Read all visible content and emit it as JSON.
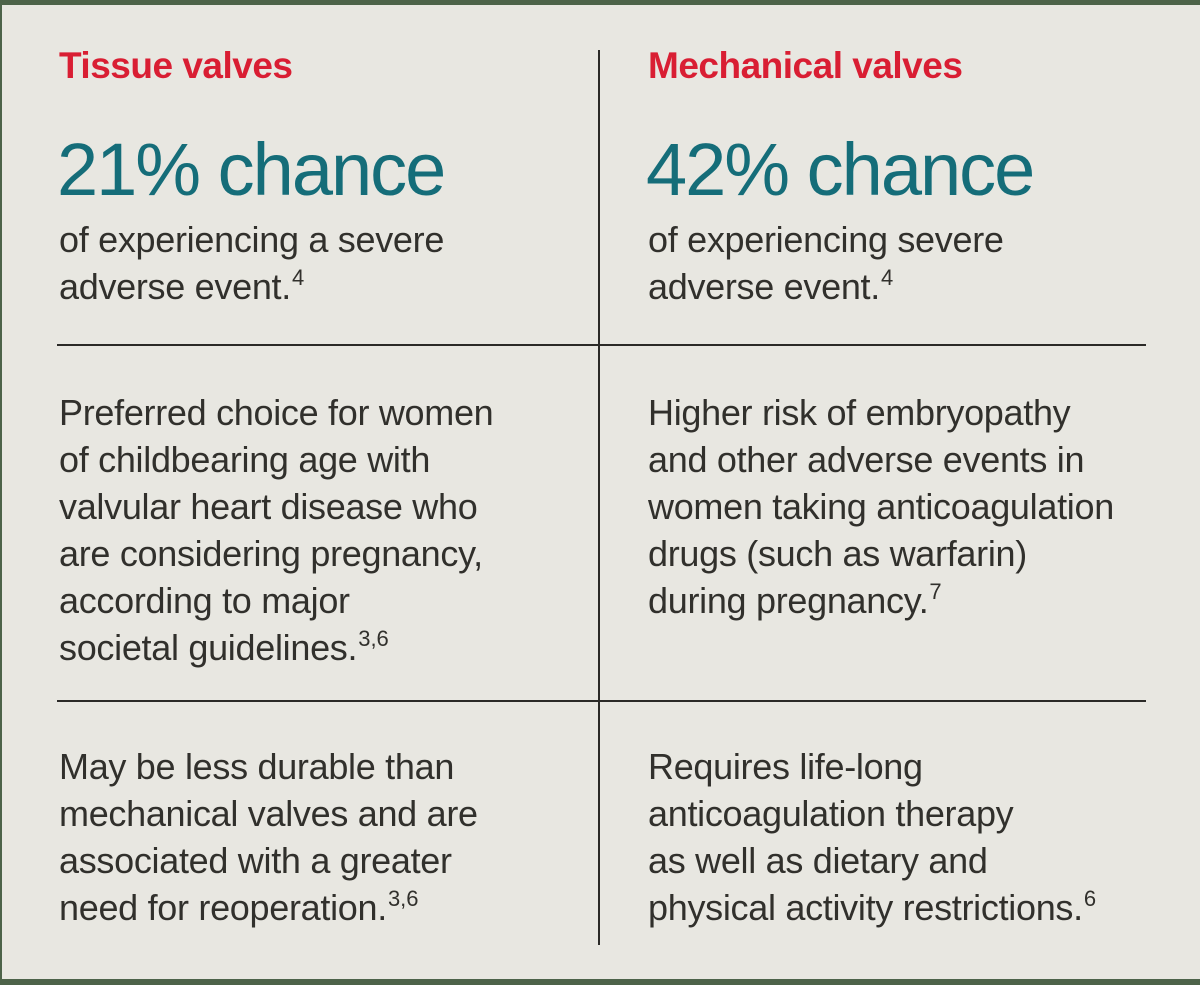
{
  "colors": {
    "background": "#e8e7e1",
    "border_green": "#4d6349",
    "heading_red": "#d91e33",
    "stat_teal": "#156d79",
    "body_ink": "#31302c",
    "rule": "#2b2a27"
  },
  "columns": [
    {
      "title": "Tissue valves",
      "stat": {
        "headline": "21% chance",
        "desc_lines": [
          "of experiencing a severe",
          "adverse event."
        ],
        "desc_sup": "4"
      },
      "rows": [
        {
          "lines": [
            "Preferred choice for women",
            "of childbearing age with",
            "valvular heart disease who",
            "are considering pregnancy,",
            "according to major",
            "societal guidelines."
          ],
          "sup": "3,6"
        },
        {
          "lines": [
            "May be less durable than",
            "mechanical valves and are",
            "associated with a greater",
            "need for reoperation."
          ],
          "sup": "3,6"
        }
      ]
    },
    {
      "title": "Mechanical valves",
      "stat": {
        "headline": "42% chance",
        "desc_lines": [
          "of experiencing severe",
          "adverse event."
        ],
        "desc_sup": "4"
      },
      "rows": [
        {
          "lines": [
            "Higher risk of embryopathy",
            "and other adverse events in",
            "women taking anticoagulation",
            "drugs (such as warfarin)",
            "during pregnancy."
          ],
          "sup": "7"
        },
        {
          "lines": [
            "Requires life-long",
            "anticoagulation therapy",
            "as well as dietary and",
            "physical activity restrictions."
          ],
          "sup": "6"
        }
      ]
    }
  ]
}
